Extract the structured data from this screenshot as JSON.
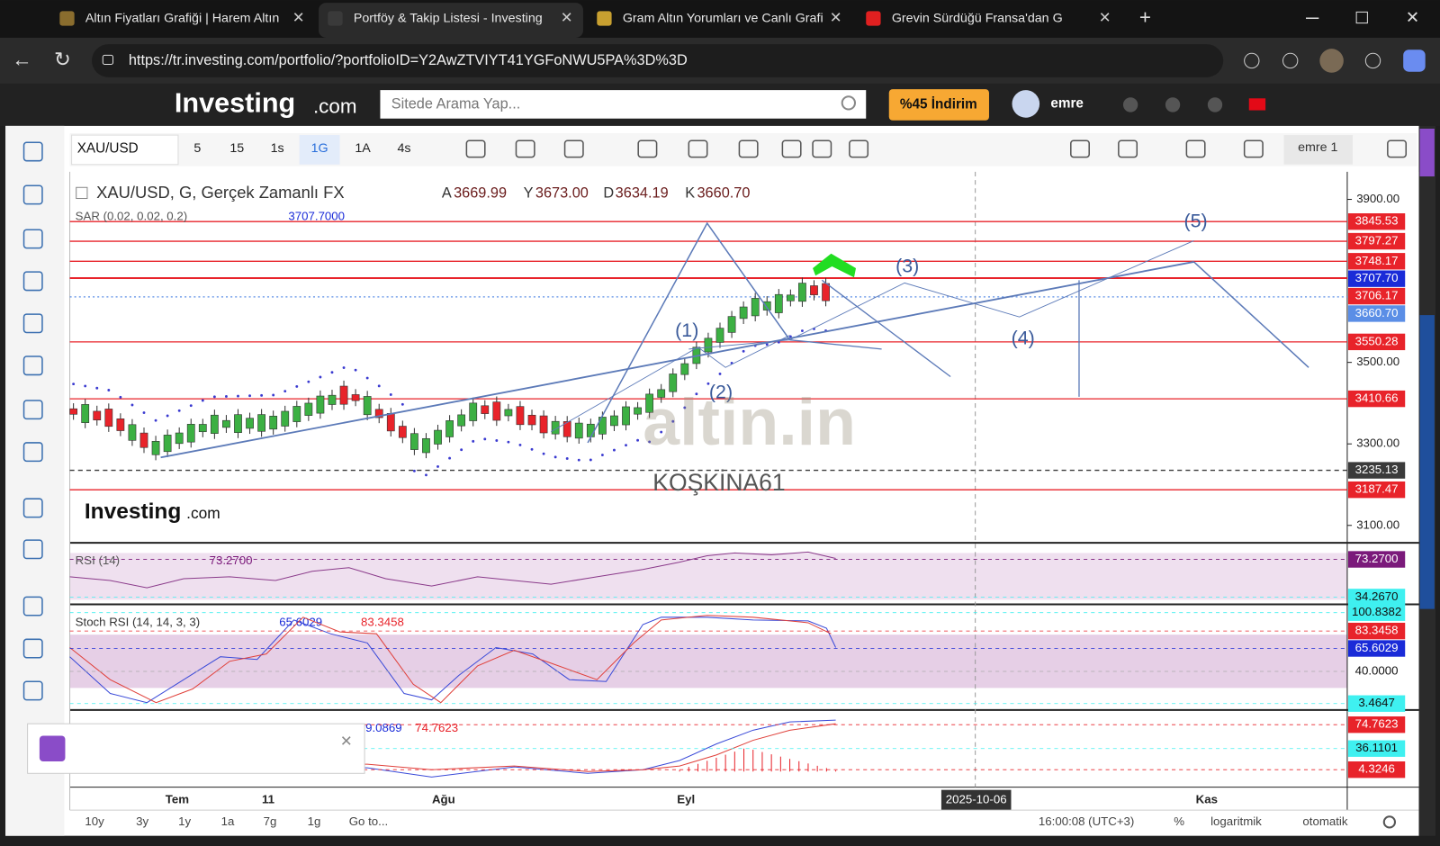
{
  "browser": {
    "tabs": [
      "Altın Fiyatları Grafiği | Harem Altın",
      "Portföy & Takip Listesi - Investing",
      "Gram Altın Yorumları ve Canlı Grafi",
      "Grevin Sürdüğü Fransa'dan G"
    ],
    "url": "https://tr.investing.com/portfolio/?portfolioID=Y2AwZTVIYT41YGFoNWU5PA%3D%3D"
  },
  "site": {
    "logo": "Investing",
    "logo_suffix": ".com",
    "search_placeholder": "Sitede Arama Yap...",
    "promo": "%45 İndirim",
    "user": "emre"
  },
  "toolbar": {
    "symbol": "XAU/USD",
    "intervals": [
      "5",
      "15",
      "1s",
      "1G",
      "1A",
      "4s"
    ],
    "active_interval": 3,
    "layout": "emre 1"
  },
  "chart": {
    "title": "XAU/USD, G, Gerçek Zamanlı FX",
    "ohlc": [
      {
        "key": "A",
        "value": "3669.99"
      },
      {
        "key": "Y",
        "value": "3673.00"
      },
      {
        "key": "D",
        "value": "3634.19"
      },
      {
        "key": "K",
        "value": "3660.70"
      }
    ],
    "sar": {
      "label": "SAR (0.02, 0.02, 0.2)",
      "value": "3707.7000"
    },
    "price_ticks": [
      "3900.00",
      "3500.00",
      "3300.00",
      "3100.00"
    ],
    "levels": [
      {
        "text": "3845.53",
        "color": "#e8232a",
        "line": "solid"
      },
      {
        "text": "3797.27",
        "color": "#e8232a",
        "line": "solid"
      },
      {
        "text": "3748.17",
        "color": "#e8232a",
        "line": "solid"
      },
      {
        "text": "3707.70",
        "color": "#1a2bd8",
        "line": "solid"
      },
      {
        "text": "3706.17",
        "color": "#e8232a",
        "line": "solid"
      },
      {
        "text": "3660.70",
        "color": "#5b8ee6",
        "line": "dotted"
      },
      {
        "text": "3550.28",
        "color": "#e8232a",
        "line": "solid"
      },
      {
        "text": "3410.66",
        "color": "#e8232a",
        "line": "solid"
      },
      {
        "text": "3235.13",
        "color": "#3b3b3b",
        "line": "dashed"
      },
      {
        "text": "3187.47",
        "color": "#e8232a",
        "line": "solid"
      }
    ],
    "waves": [
      "(1)",
      "(2)",
      "(3)",
      "(4)",
      "(5)"
    ],
    "watermark": "altin.in",
    "watermark_author": "KOŞKİNA61",
    "chart_logo": "Investing",
    "chart_logo_suffix": ".com"
  },
  "rsi": {
    "label": "RSI (14)",
    "value": "73.2700",
    "axis": [
      {
        "text": "73.2700",
        "color": "#7b1a7b"
      },
      {
        "text": "34.2670",
        "color": "#3ff0f0"
      }
    ]
  },
  "stoch": {
    "label": "Stoch RSI (14, 14, 3, 3)",
    "k": "65.6029",
    "d": "83.3458",
    "axis": [
      {
        "text": "100.8382",
        "color": "#3ff0f0"
      },
      {
        "text": "83.3458",
        "color": "#e8232a"
      },
      {
        "text": "65.6029",
        "color": "#1a2bd8"
      },
      {
        "text": "40.0000",
        "color": "#ffffff"
      },
      {
        "text": "3.4647",
        "color": "#3ff0f0"
      }
    ]
  },
  "macd": {
    "macd": "9.0869",
    "signal": "74.7623",
    "axis": [
      {
        "text": "74.7623",
        "color": "#e8232a"
      },
      {
        "text": "36.1101",
        "color": "#3ff0f0"
      },
      {
        "text": "4.3246",
        "color": "#e8232a"
      }
    ]
  },
  "time_axis": [
    "Tem",
    "11",
    "Ağu",
    "Eyl",
    "Kas"
  ],
  "crosshair_date": "2025-10-06",
  "bottom_bar": {
    "ranges": [
      "10y",
      "3y",
      "1y",
      "1a",
      "7g",
      "1g"
    ],
    "goto": "Go to...",
    "clock": "16:00:08 (UTC+3)",
    "options": [
      "%",
      "logaritmik",
      "otomatik"
    ]
  }
}
